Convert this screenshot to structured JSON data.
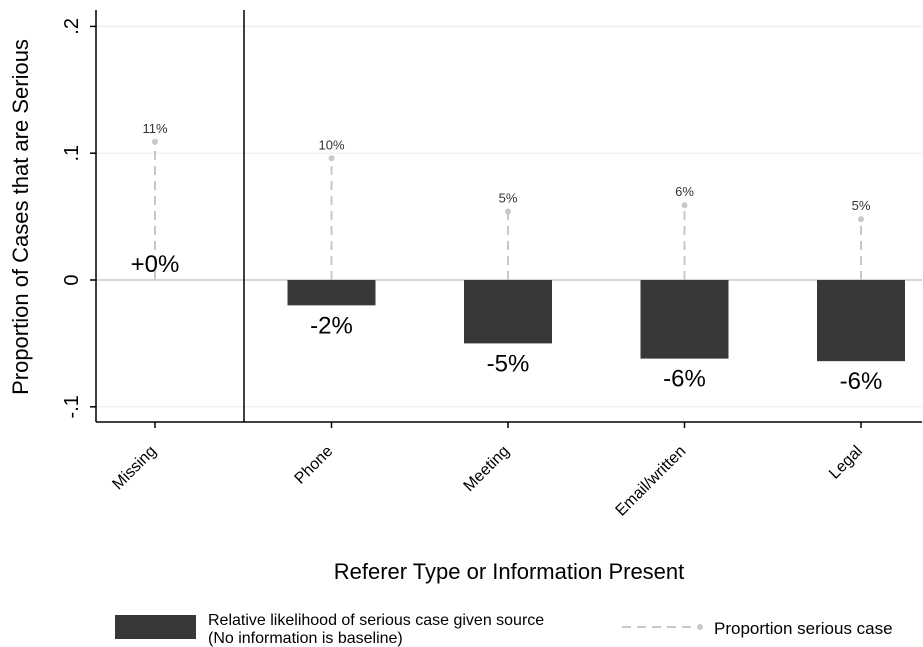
{
  "chart_data": {
    "type": "bar",
    "categories": [
      "Missing",
      "Phone",
      "Meeting",
      "Email/written",
      "Legal"
    ],
    "series": [
      {
        "name": "Relative likelihood of serious case given source",
        "name_line2": "(No information is baseline)",
        "values": [
          0.0,
          -0.02,
          -0.05,
          -0.062,
          -0.064
        ],
        "labels": [
          "+0%",
          "-2%",
          "-5%",
          "-6%",
          "-6%"
        ]
      },
      {
        "name": "Proportion serious case",
        "values": [
          0.109,
          0.096,
          0.054,
          0.059,
          0.048
        ],
        "labels": [
          "11%",
          "10%",
          "5%",
          "6%",
          "5%"
        ]
      }
    ],
    "xlabel": "Referer Type or Information Present",
    "ylabel": "Proportion of Cases that are Serious",
    "ylim": [
      -0.11,
      0.21
    ],
    "yticks": [
      -0.1,
      0,
      0.1,
      0.2
    ],
    "ytick_labels": [
      "-.1",
      "0",
      ".1",
      ".2"
    ],
    "grid": true,
    "legend_position": "bottom",
    "colors": {
      "bar": "#383838",
      "stem": "#c8c8c8",
      "grid": "#ececec",
      "zero_line": "#bdbdbd",
      "axis": "#000000",
      "text": "#000000",
      "small_label": "#333333"
    }
  }
}
